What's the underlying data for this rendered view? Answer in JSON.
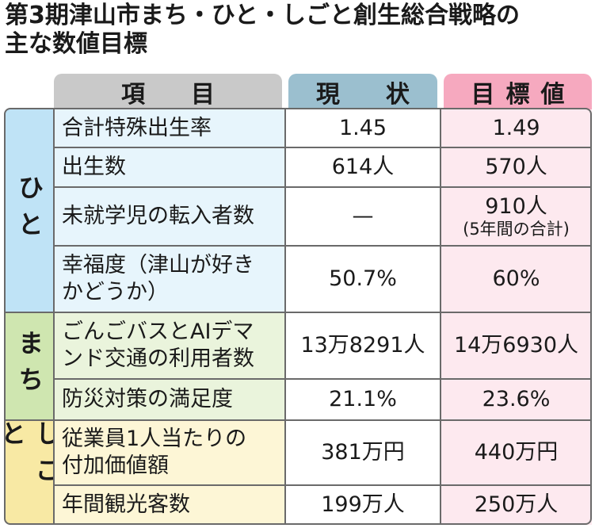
{
  "title": {
    "line1": "第3期津山市まち・ひと・しごと創生総合戦略の",
    "line2": "主な数値目標"
  },
  "headers": {
    "item": "項　目",
    "current": "現　状",
    "target": "目標値"
  },
  "groups": {
    "hito": "ひと",
    "machi": "まち",
    "shigoto": "しごと"
  },
  "rows": [
    {
      "item": "合計特殊出生率",
      "current": "1.45",
      "target": "1.49"
    },
    {
      "item": "出生数",
      "current": "614人",
      "target": "570人"
    },
    {
      "item": "未就学児の転入者数",
      "current": "—",
      "target": "910人",
      "target_note": "(5年間の合計)"
    },
    {
      "item_line1": "幸福度（津山が好き",
      "item_line2": "かどうか）",
      "current": "50.7%",
      "target": "60%"
    },
    {
      "item_line1": "ごんごバスとAIデマ",
      "item_line2": "ンド交通の利用者数",
      "current": "13万8291人",
      "target": "14万6930人"
    },
    {
      "item": "防災対策の満足度",
      "current": "21.1%",
      "target": "23.6%"
    },
    {
      "item_line1": "従業員1人当たりの",
      "item_line2": "付加価値額",
      "current": "381万円",
      "target": "440万円"
    },
    {
      "item": "年間観光客数",
      "current": "199万人",
      "target": "250万人"
    }
  ],
  "colors": {
    "hito": "#bfe3f6",
    "machi": "#cfe6b0",
    "shigoto": "#f8e9a4",
    "header_current": "#9bbfcf",
    "header_target": "#f6a9bf"
  }
}
